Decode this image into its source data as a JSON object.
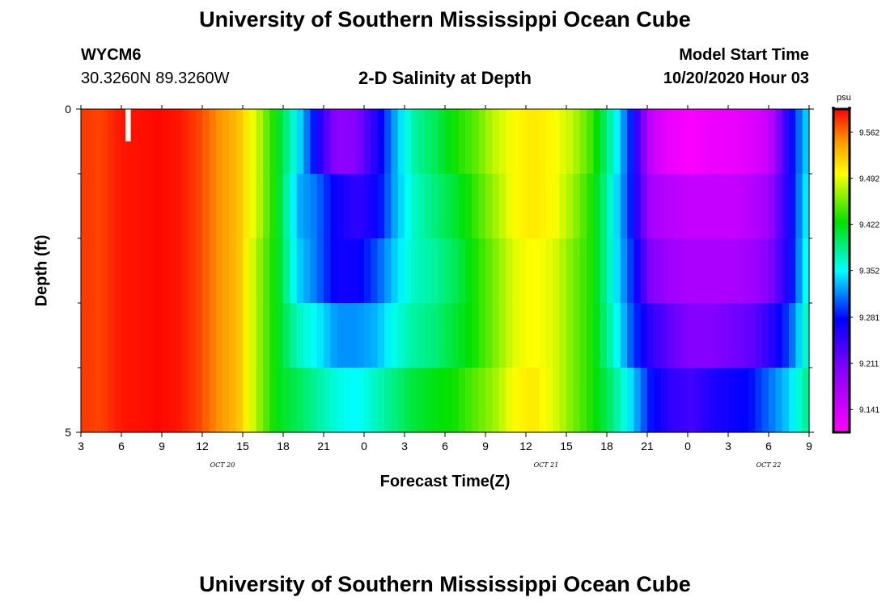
{
  "header": {
    "title": "University of Southern Mississippi Ocean Cube",
    "station": "WYCM6",
    "coordinates": "30.3260N 89.3260W",
    "subtitle": "2-D Salinity at Depth",
    "model_label": "Model Start Time",
    "model_start": "10/20/2020 Hour 03"
  },
  "footer": {
    "title": "University of Southern Mississippi Ocean Cube"
  },
  "colorbar": {
    "unit": "psu",
    "min": 9.106,
    "max": 9.597,
    "tick_values": [
      9.141,
      9.211,
      9.281,
      9.352,
      9.422,
      9.492,
      9.562
    ],
    "tick_labels": [
      "9.141",
      "9.211",
      "9.281",
      "9.352",
      "9.422",
      "9.492",
      "9.562"
    ]
  },
  "chart_data": {
    "type": "heatmap",
    "title": "2-D Salinity at Depth",
    "xlabel": "Forecast Time(Z)",
    "ylabel": "Depth (ft)",
    "x_unit": "forecast hour since 10/20/2020 00Z",
    "x_range": [
      3,
      57
    ],
    "y_range": [
      0,
      5
    ],
    "y_inverted": true,
    "y_tick_labels": [
      {
        "v": 0,
        "t": "0"
      },
      {
        "v": 5,
        "t": "5"
      }
    ],
    "y_minor_ticks": [
      1,
      2,
      3,
      4
    ],
    "x_ticks": [
      {
        "v": 3,
        "t": "3"
      },
      {
        "v": 6,
        "t": "6"
      },
      {
        "v": 9,
        "t": "9"
      },
      {
        "v": 12,
        "t": "12"
      },
      {
        "v": 15,
        "t": "15"
      },
      {
        "v": 18,
        "t": "18"
      },
      {
        "v": 21,
        "t": "21"
      },
      {
        "v": 24,
        "t": "0"
      },
      {
        "v": 27,
        "t": "3"
      },
      {
        "v": 30,
        "t": "6"
      },
      {
        "v": 33,
        "t": "9"
      },
      {
        "v": 36,
        "t": "12"
      },
      {
        "v": 39,
        "t": "15"
      },
      {
        "v": 42,
        "t": "18"
      },
      {
        "v": 45,
        "t": "21"
      },
      {
        "v": 48,
        "t": "0"
      },
      {
        "v": 51,
        "t": "3"
      },
      {
        "v": 54,
        "t": "6"
      },
      {
        "v": 57,
        "t": "9"
      }
    ],
    "day_labels": [
      {
        "v": 13.5,
        "t": "OCT 20"
      },
      {
        "v": 37.5,
        "t": "OCT 21"
      },
      {
        "v": 54,
        "t": "OCT 22"
      }
    ],
    "depth_layers": [
      0,
      1,
      2,
      3,
      4
    ],
    "layer_thickness_ft": 1,
    "salinity_psu": [
      [
        9.58,
        9.58,
        9.58,
        9.58,
        9.58
      ],
      [
        9.575,
        9.575,
        9.575,
        9.575,
        9.575
      ],
      [
        9.59,
        9.59,
        9.59,
        9.59,
        9.59
      ],
      [
        9.592,
        9.592,
        9.592,
        9.592,
        9.592
      ],
      [
        9.595,
        9.595,
        9.595,
        9.595,
        9.595
      ],
      [
        9.59,
        9.59,
        9.59,
        9.59,
        9.59
      ],
      [
        9.575,
        9.575,
        9.575,
        9.575,
        9.575
      ],
      [
        9.55,
        9.55,
        9.55,
        9.55,
        9.55
      ],
      [
        9.53,
        9.53,
        9.53,
        9.53,
        9.53
      ],
      [
        9.48,
        9.48,
        9.47,
        9.47,
        9.47
      ],
      [
        9.42,
        9.42,
        9.42,
        9.42,
        9.42
      ],
      [
        9.35,
        9.33,
        9.34,
        9.37,
        9.4
      ],
      [
        9.27,
        9.31,
        9.31,
        9.35,
        9.38
      ],
      [
        9.19,
        9.27,
        9.27,
        9.32,
        9.36
      ],
      [
        9.2,
        9.25,
        9.27,
        9.32,
        9.35
      ],
      [
        9.26,
        9.27,
        9.3,
        9.33,
        9.37
      ],
      [
        9.33,
        9.33,
        9.34,
        9.36,
        9.39
      ],
      [
        9.38,
        9.37,
        9.37,
        9.38,
        9.41
      ],
      [
        9.4,
        9.39,
        9.38,
        9.39,
        9.42
      ],
      [
        9.43,
        9.41,
        9.4,
        9.41,
        9.43
      ],
      [
        9.45,
        9.44,
        9.43,
        9.43,
        9.45
      ],
      [
        9.48,
        9.47,
        9.46,
        9.46,
        9.47
      ],
      [
        9.5,
        9.5,
        9.49,
        9.49,
        9.5
      ],
      [
        9.51,
        9.51,
        9.5,
        9.5,
        9.51
      ],
      [
        9.5,
        9.5,
        9.49,
        9.49,
        9.49
      ],
      [
        9.48,
        9.47,
        9.46,
        9.46,
        9.46
      ],
      [
        9.44,
        9.43,
        9.43,
        9.43,
        9.43
      ],
      [
        9.37,
        9.36,
        9.36,
        9.37,
        9.39
      ],
      [
        9.28,
        9.28,
        9.29,
        9.3,
        9.34
      ],
      [
        9.15,
        9.17,
        9.2,
        9.25,
        9.28
      ],
      [
        9.12,
        9.16,
        9.18,
        9.22,
        9.25
      ],
      [
        9.11,
        9.15,
        9.17,
        9.2,
        9.24
      ],
      [
        9.12,
        9.15,
        9.17,
        9.2,
        9.26
      ],
      [
        9.12,
        9.15,
        9.17,
        9.21,
        9.27
      ],
      [
        9.13,
        9.16,
        9.18,
        9.22,
        9.28
      ],
      [
        9.15,
        9.18,
        9.2,
        9.25,
        9.31
      ],
      [
        9.27,
        9.27,
        9.27,
        9.3,
        9.34
      ],
      [
        9.35,
        9.36,
        9.37,
        9.38,
        9.39
      ]
    ],
    "gap": {
      "x": [
        6.3,
        6.7
      ],
      "depth": [
        0,
        0.5
      ]
    }
  }
}
